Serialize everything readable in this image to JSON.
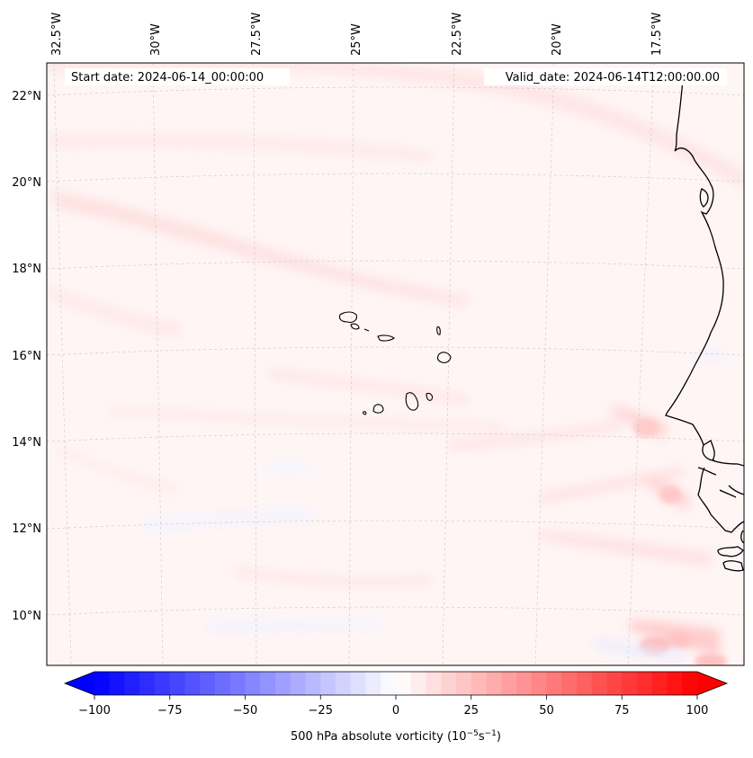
{
  "header": {
    "start_label": "Start date: 2024-06-14_00:00:00",
    "valid_label": "Valid_date: 2024-06-14T12:00:00.00"
  },
  "map": {
    "projection_hint": "conic",
    "lon_labels": [
      "32.5°W",
      "30°W",
      "27.5°W",
      "25°W",
      "22.5°W",
      "20°W",
      "17.5°W"
    ],
    "lat_labels": [
      "22°N",
      "20°N",
      "18°N",
      "16°N",
      "14°N",
      "12°N",
      "10°N"
    ],
    "gridlines": true
  },
  "colorbar": {
    "label": "500 hPa absolute vorticity (10",
    "label_exp1": "−5",
    "label_mid": "s",
    "label_exp2": "−1",
    "label_end": ")",
    "ticks": [
      "−100",
      "−75",
      "−50",
      "−25",
      "0",
      "25",
      "50",
      "75",
      "100"
    ],
    "min": -100,
    "max": 100,
    "levels": 41,
    "colormap": "bwr",
    "low_color": "#0000ff",
    "high_color": "#ff0000"
  }
}
